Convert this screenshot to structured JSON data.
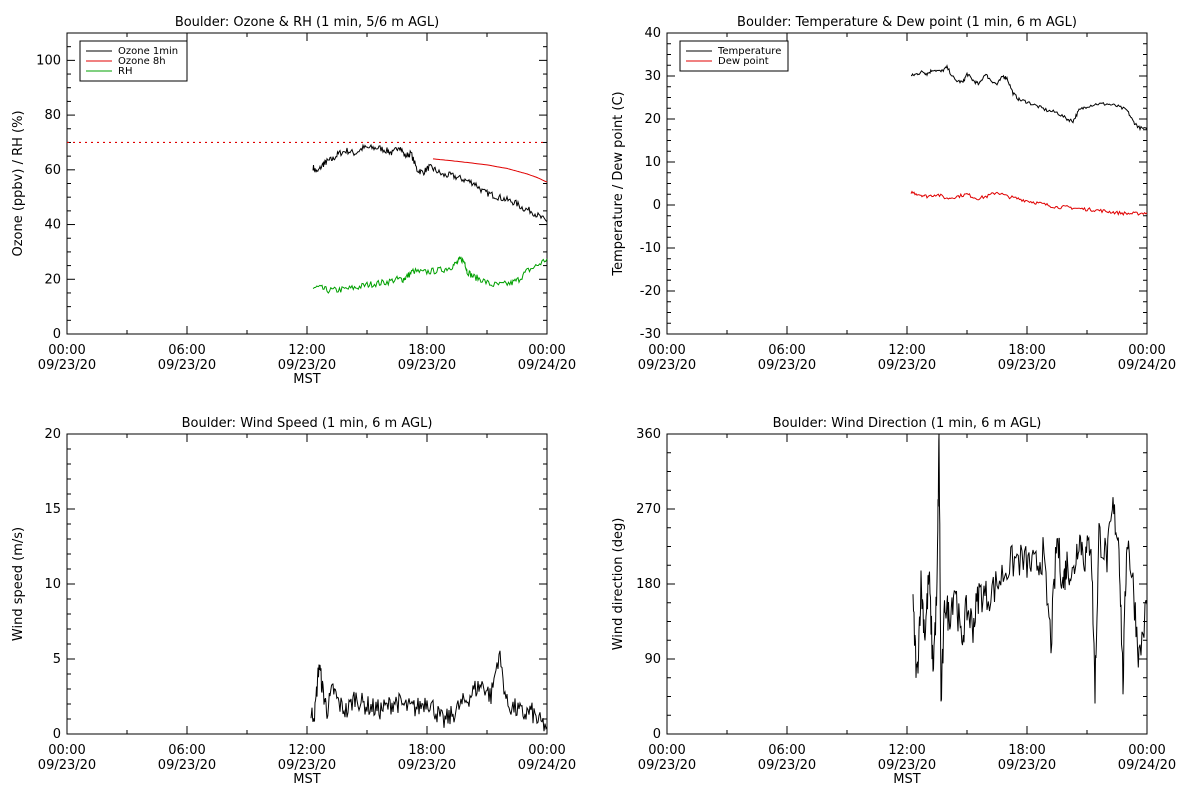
{
  "chart_data": [
    {
      "type": "line",
      "title": "Boulder: Ozone & RH (1 min, 5/6 m AGL)",
      "xlabel": "MST",
      "ylabel": "Ozone (ppbv) / RH (%)",
      "xlim_hours": [
        0,
        24
      ],
      "ylim": [
        0,
        110
      ],
      "yticks": [
        0,
        20,
        40,
        60,
        80,
        100
      ],
      "x_tick_labels": [
        {
          "hour": 0,
          "time": "00:00",
          "date": "09/23/20"
        },
        {
          "hour": 6,
          "time": "06:00",
          "date": "09/23/20"
        },
        {
          "hour": 12,
          "time": "12:00",
          "date": "09/23/20"
        },
        {
          "hour": 18,
          "time": "18:00",
          "date": "09/23/20"
        },
        {
          "hour": 24,
          "time": "00:00",
          "date": "09/24/20"
        }
      ],
      "legend_position": "top-left",
      "reference_line": {
        "y": 70,
        "color": "#e00000",
        "style": "dotted"
      },
      "series": [
        {
          "name": "Ozone 1min",
          "color": "#000000",
          "x": [
            12.3,
            12.5,
            12.8,
            13.0,
            13.3,
            13.6,
            14.0,
            14.4,
            14.8,
            15.2,
            15.6,
            16.0,
            16.3,
            16.6,
            16.9,
            17.2,
            17.5,
            17.8,
            18.1,
            18.4,
            18.8,
            19.2,
            19.6,
            20.0,
            20.4,
            20.8,
            21.2,
            21.6,
            22.0,
            22.4,
            22.8,
            23.2,
            23.6,
            24.0
          ],
          "y": [
            61,
            59,
            62,
            63,
            64,
            66,
            67,
            66,
            68,
            68,
            68,
            67,
            66,
            69,
            65,
            66,
            60,
            59,
            61,
            60,
            58,
            58,
            57,
            56,
            55,
            52,
            51,
            50,
            49,
            48,
            46,
            45,
            43,
            41
          ]
        },
        {
          "name": "Ozone 8h",
          "color": "#e00000",
          "x": [
            18.3,
            19.0,
            20.0,
            21.0,
            22.0,
            22.5,
            23.0,
            23.5,
            24.0
          ],
          "y": [
            64,
            63.5,
            62.7,
            61.8,
            60.5,
            59.5,
            58.5,
            57.2,
            55.5
          ]
        },
        {
          "name": "RH",
          "color": "#00a000",
          "x": [
            12.3,
            12.6,
            13.0,
            13.5,
            14.0,
            14.5,
            15.0,
            15.5,
            16.0,
            16.5,
            16.8,
            17.0,
            17.3,
            17.8,
            18.3,
            18.8,
            19.2,
            19.5,
            19.7,
            19.9,
            20.0,
            20.3,
            20.7,
            21.2,
            21.7,
            22.2,
            22.6,
            23.0,
            23.5,
            24.0
          ],
          "y": [
            17,
            17,
            16,
            16,
            16.5,
            17,
            18,
            18.5,
            19,
            20,
            20,
            21,
            23,
            22.5,
            23,
            23.5,
            24.5,
            26,
            27.5,
            26,
            23,
            21,
            20,
            18,
            18,
            18.5,
            20,
            23,
            25,
            27.5
          ]
        }
      ]
    },
    {
      "type": "line",
      "title": "Boulder: Temperature & Dew point (1 min, 6 m AGL)",
      "xlabel": "",
      "ylabel": "Temperature / Dew point (C)",
      "xlim_hours": [
        0,
        24
      ],
      "ylim": [
        -30,
        40
      ],
      "yticks": [
        -30,
        -20,
        -10,
        0,
        10,
        20,
        30,
        40
      ],
      "x_tick_labels": [
        {
          "hour": 0,
          "time": "00:00",
          "date": "09/23/20"
        },
        {
          "hour": 6,
          "time": "06:00",
          "date": "09/23/20"
        },
        {
          "hour": 12,
          "time": "12:00",
          "date": "09/23/20"
        },
        {
          "hour": 18,
          "time": "18:00",
          "date": "09/23/20"
        },
        {
          "hour": 24,
          "time": "00:00",
          "date": "09/24/20"
        }
      ],
      "legend_position": "top-left",
      "series": [
        {
          "name": "Temperature",
          "color": "#000000",
          "x": [
            12.2,
            12.5,
            12.8,
            13.0,
            13.3,
            13.7,
            14.0,
            14.4,
            14.8,
            15.0,
            15.3,
            15.6,
            15.9,
            16.2,
            16.5,
            16.8,
            17.0,
            17.3,
            17.6,
            18.0,
            18.5,
            19.0,
            19.5,
            20.0,
            20.3,
            20.6,
            21.0,
            21.5,
            22.0,
            22.5,
            23.0,
            23.3,
            23.6,
            24.0
          ],
          "y": [
            30,
            30.5,
            31,
            30.5,
            31.5,
            31,
            32,
            29,
            28.5,
            30.5,
            29,
            28,
            30.5,
            29,
            28,
            30,
            29.5,
            26,
            24.5,
            24,
            23,
            22,
            21.5,
            20,
            19.5,
            22,
            23,
            23.5,
            23.5,
            23,
            22,
            19.5,
            18,
            17.5
          ]
        },
        {
          "name": "Dew point",
          "color": "#e00000",
          "x": [
            12.2,
            12.6,
            13.0,
            13.5,
            14.0,
            14.5,
            15.0,
            15.5,
            16.0,
            16.5,
            17.0,
            17.5,
            18.0,
            18.5,
            19.0,
            19.5,
            20.0,
            20.5,
            21.0,
            21.5,
            22.0,
            22.5,
            23.0,
            23.5,
            24.0
          ],
          "y": [
            3,
            2.5,
            2,
            2.5,
            1.5,
            2,
            2.5,
            1.5,
            2,
            3,
            2,
            1.5,
            1,
            0.5,
            0,
            -0.5,
            -0.5,
            -0.8,
            -1,
            -1.2,
            -1.5,
            -1.8,
            -2,
            -2,
            -1.8
          ]
        }
      ]
    },
    {
      "type": "line",
      "title": "Boulder: Wind Speed (1 min, 6 m AGL)",
      "xlabel": "MST",
      "ylabel": "Wind speed (m/s)",
      "xlim_hours": [
        0,
        24
      ],
      "ylim": [
        0,
        20
      ],
      "yticks": [
        0,
        5,
        10,
        15,
        20
      ],
      "x_tick_labels": [
        {
          "hour": 0,
          "time": "00:00",
          "date": "09/23/20"
        },
        {
          "hour": 6,
          "time": "06:00",
          "date": "09/23/20"
        },
        {
          "hour": 12,
          "time": "12:00",
          "date": "09/23/20"
        },
        {
          "hour": 18,
          "time": "18:00",
          "date": "09/23/20"
        },
        {
          "hour": 24,
          "time": "00:00",
          "date": "09/24/20"
        }
      ],
      "series": [
        {
          "name": "",
          "color": "#000000",
          "x": [
            12.2,
            12.4,
            12.6,
            12.8,
            13.0,
            13.3,
            13.6,
            14.0,
            14.4,
            14.8,
            15.2,
            15.6,
            16.0,
            16.4,
            16.8,
            17.2,
            17.6,
            18.0,
            18.4,
            18.8,
            19.2,
            19.6,
            20.0,
            20.4,
            20.8,
            21.2,
            21.6,
            22.0,
            22.4,
            22.8,
            23.2,
            23.6,
            24.0
          ],
          "y": [
            1.2,
            1.5,
            4.7,
            2.8,
            1.6,
            3.0,
            2.0,
            1.5,
            2.5,
            2.0,
            1.8,
            1.6,
            1.8,
            2.2,
            1.9,
            1.7,
            1.8,
            2.3,
            1.6,
            0.8,
            1.2,
            1.8,
            2.3,
            3.0,
            3.3,
            2.5,
            5.4,
            2.0,
            1.7,
            1.3,
            1.5,
            0.8,
            0.5
          ]
        }
      ]
    },
    {
      "type": "line",
      "title": "Boulder: Wind Direction (1 min, 6 m AGL)",
      "xlabel": "MST",
      "ylabel": "Wind direction (deg)",
      "xlim_hours": [
        0,
        24
      ],
      "ylim": [
        0,
        360
      ],
      "yticks": [
        0,
        90,
        180,
        270,
        360
      ],
      "x_tick_labels": [
        {
          "hour": 0,
          "time": "00:00",
          "date": "09/23/20"
        },
        {
          "hour": 6,
          "time": "06:00",
          "date": "09/23/20"
        },
        {
          "hour": 12,
          "time": "12:00",
          "date": "09/23/20"
        },
        {
          "hour": 18,
          "time": "18:00",
          "date": "09/23/20"
        },
        {
          "hour": 24,
          "time": "00:00",
          "date": "09/24/20"
        }
      ],
      "series": [
        {
          "name": "",
          "color": "#000000",
          "x": [
            12.3,
            12.5,
            12.7,
            12.9,
            13.1,
            13.3,
            13.5,
            13.6,
            13.7,
            13.9,
            14.1,
            14.4,
            14.7,
            15.0,
            15.3,
            15.6,
            16.0,
            16.5,
            17.0,
            17.5,
            18.0,
            18.4,
            18.8,
            19.2,
            19.5,
            19.8,
            20.0,
            20.3,
            20.6,
            20.9,
            21.2,
            21.4,
            21.6,
            22.0,
            22.3,
            22.6,
            22.8,
            23.0,
            23.3,
            23.6,
            24.0
          ],
          "y": [
            150,
            65,
            180,
            120,
            190,
            80,
            170,
            360,
            35,
            160,
            140,
            180,
            110,
            150,
            130,
            170,
            165,
            180,
            200,
            210,
            205,
            200,
            215,
            110,
            235,
            180,
            205,
            190,
            240,
            210,
            235,
            55,
            240,
            210,
            270,
            230,
            60,
            240,
            180,
            90,
            155
          ]
        }
      ]
    }
  ]
}
